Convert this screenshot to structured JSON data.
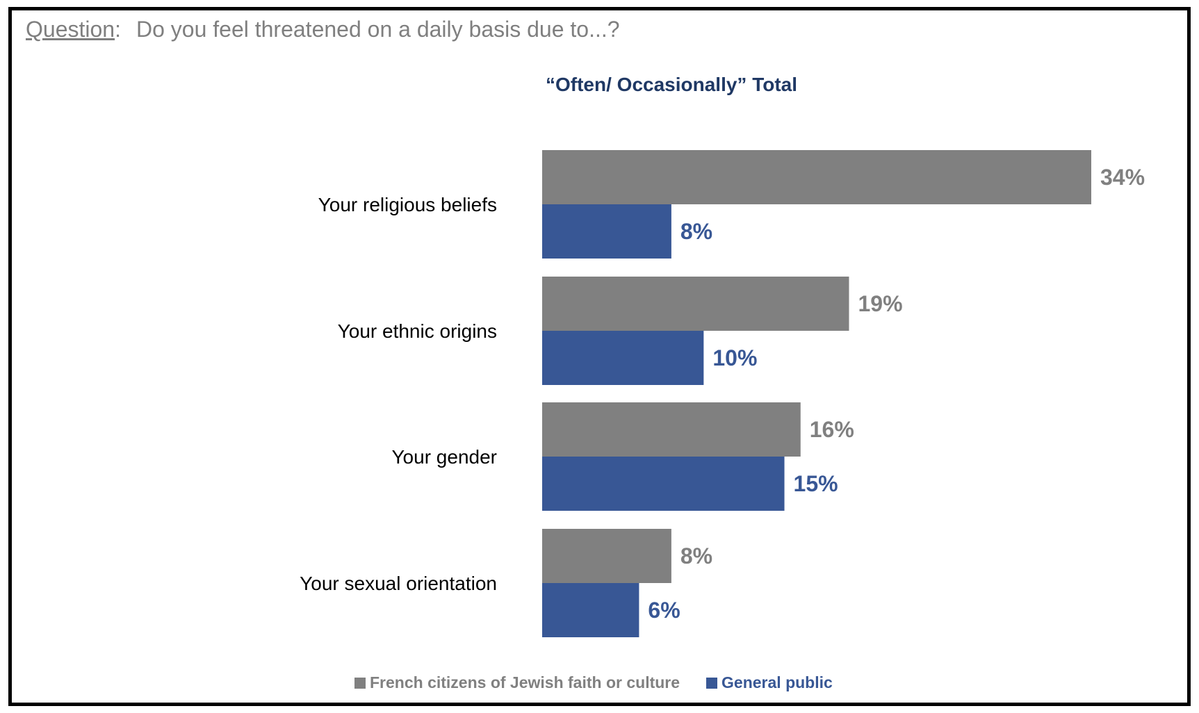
{
  "question": {
    "label": "Question",
    "separator": ":",
    "text": "Do you feel threatened on a daily basis due to...?"
  },
  "chart_data": {
    "type": "bar",
    "orientation": "horizontal",
    "subtitle": "“Often/ Occasionally” Total",
    "categories": [
      "Your religious beliefs",
      "Your ethnic origins",
      "Your gender",
      "Your sexual orientation"
    ],
    "series": [
      {
        "name": "French citizens of Jewish faith or culture",
        "values": [
          34,
          19,
          16,
          8
        ],
        "labels": [
          "34%",
          "19%",
          "16%",
          "8%"
        ],
        "color": "#808080"
      },
      {
        "name": "General public",
        "values": [
          8,
          10,
          15,
          6
        ],
        "labels": [
          "8%",
          "10%",
          "15%",
          "6%"
        ],
        "color": "#385795"
      }
    ],
    "value_unit": "%",
    "xlim": [
      0,
      34
    ],
    "grid": false,
    "legend_position": "bottom"
  }
}
